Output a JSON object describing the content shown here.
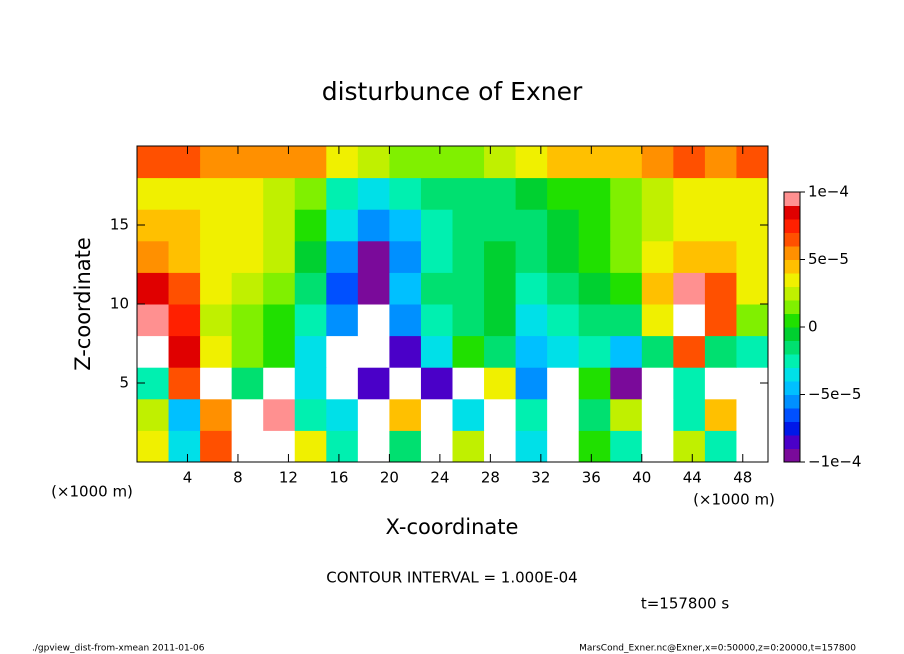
{
  "chart_data": {
    "type": "heatmap",
    "title": "disturbunce of Exner",
    "xlabel": "X-coordinate",
    "ylabel": "Z-coordinate",
    "xunit": "(×1000 m)",
    "yunit": "(×1000 m)",
    "x": [
      1.25,
      3.75,
      6.25,
      8.75,
      11.25,
      13.75,
      16.25,
      18.75,
      21.25,
      23.75,
      26.25,
      28.75,
      31.25,
      33.75,
      36.25,
      38.75,
      41.25,
      43.75,
      46.25,
      48.75
    ],
    "y": [
      1,
      3,
      5,
      7,
      9,
      11,
      13,
      15,
      17,
      19
    ],
    "values": [
      [
        3e-05,
        -4e-05,
        6e-05,
        -0.00018,
        0.00012,
        3e-05,
        -3e-05,
        0.00012,
        -2e-05,
        0.00015,
        2e-05,
        0.00018,
        -4e-05,
        0.00014,
        0,
        -3e-05,
        -0.00015,
        2e-05,
        -3e-05,
        0.00014
      ],
      [
        2e-05,
        -5e-05,
        5e-05,
        -0.00015,
        0.0001,
        -3e-05,
        -4e-05,
        0.00015,
        4e-05,
        0.00012,
        -4e-05,
        0.0002,
        -3e-05,
        0.00015,
        -2e-05,
        2e-05,
        -0.0002,
        -3e-05,
        4e-05,
        0.00015
      ],
      [
        -3e-05,
        6e-05,
        0.00012,
        -2e-05,
        0.00015,
        -4e-05,
        -0.0002,
        -8e-05,
        0.00015,
        -8e-05,
        0.0002,
        3e-05,
        -6e-05,
        0.00015,
        0,
        -0.0001,
        -0.00015,
        -3e-05,
        0.0002,
        -0.00012
      ],
      [
        0.00012,
        8e-05,
        3e-05,
        1e-05,
        0,
        -4e-05,
        -0.00015,
        -0.0002,
        -8e-05,
        -4e-05,
        0,
        -2e-05,
        -5e-05,
        -4e-05,
        -3e-05,
        -5e-05,
        -2e-05,
        6e-05,
        -2e-05,
        -3e-05
      ],
      [
        0.0001,
        7e-05,
        2e-05,
        1e-05,
        0,
        -3e-05,
        -6e-05,
        -0.00015,
        -6e-05,
        -3e-05,
        -2e-05,
        -1e-05,
        -4e-05,
        -3e-05,
        -2e-05,
        -2e-05,
        3e-05,
        0.00012,
        6e-05,
        1e-05
      ],
      [
        8e-05,
        6e-05,
        3e-05,
        2e-05,
        1e-05,
        -2e-05,
        -7e-05,
        -0.0001,
        -5e-05,
        -2e-05,
        -2e-05,
        -1e-05,
        -3e-05,
        -2e-05,
        -1e-05,
        0,
        4e-05,
        9e-05,
        6e-05,
        3e-05
      ],
      [
        5e-05,
        4e-05,
        3e-05,
        3e-05,
        2e-05,
        -1e-05,
        -6e-05,
        -9e-05,
        -6e-05,
        -3e-05,
        -2e-05,
        -1e-05,
        -2e-05,
        -1e-05,
        0,
        1e-05,
        3e-05,
        4e-05,
        4e-05,
        3e-05
      ],
      [
        4e-05,
        4e-05,
        3e-05,
        3e-05,
        2e-05,
        0,
        -4e-05,
        -6e-05,
        -5e-05,
        -3e-05,
        -2e-05,
        -2e-05,
        -2e-05,
        -1e-05,
        0,
        1e-05,
        2e-05,
        3e-05,
        3e-05,
        3e-05
      ],
      [
        3e-05,
        3e-05,
        3e-05,
        3e-05,
        2e-05,
        1e-05,
        -3e-05,
        -4e-05,
        -3e-05,
        -2e-05,
        -2e-05,
        -2e-05,
        -1e-05,
        0,
        0,
        1e-05,
        2e-05,
        3e-05,
        3e-05,
        3e-05
      ],
      [
        6e-05,
        6e-05,
        5e-05,
        5e-05,
        5e-05,
        5e-05,
        3e-05,
        2e-05,
        1e-05,
        1e-05,
        1e-05,
        2e-05,
        3e-05,
        4e-05,
        4e-05,
        4e-05,
        5e-05,
        6e-05,
        5e-05,
        6e-05
      ]
    ],
    "xlim": [
      0,
      50
    ],
    "ylim": [
      0,
      20
    ],
    "xticks": [
      4,
      8,
      12,
      16,
      20,
      24,
      28,
      32,
      36,
      40,
      44,
      48
    ],
    "yticks": [
      5,
      10,
      15
    ],
    "clim": [
      -0.0001,
      0.0001
    ],
    "cticks": [
      {
        "value": -0.0001,
        "label": "−1e−4"
      },
      {
        "value": -5e-05,
        "label": "−5e−5"
      },
      {
        "value": 0,
        "label": "0"
      },
      {
        "value": 5e-05,
        "label": "5e−5"
      },
      {
        "value": 0.0001,
        "label": "1e−4"
      }
    ],
    "colormap": [
      "#7a0a9a",
      "#4a00c8",
      "#0018e8",
      "#0050ff",
      "#0090ff",
      "#00c0ff",
      "#00e0e8",
      "#00f0b0",
      "#00e070",
      "#00d030",
      "#20e000",
      "#80f000",
      "#c0f000",
      "#f0f000",
      "#ffc000",
      "#ff9000",
      "#ff5000",
      "#ff2000",
      "#e00000",
      "#ff9090"
    ],
    "out_of_range_color": "#ffffff",
    "contour_interval": "CONTOUR INTERVAL = 1.000E-04",
    "time_label": "t=157800 s",
    "footer_left": "./gpview_dist-from-xmean  2011-01-06",
    "footer_right": "MarsCond_Exner.nc@Exner,x=0:50000,z=0:20000,t=157800"
  }
}
